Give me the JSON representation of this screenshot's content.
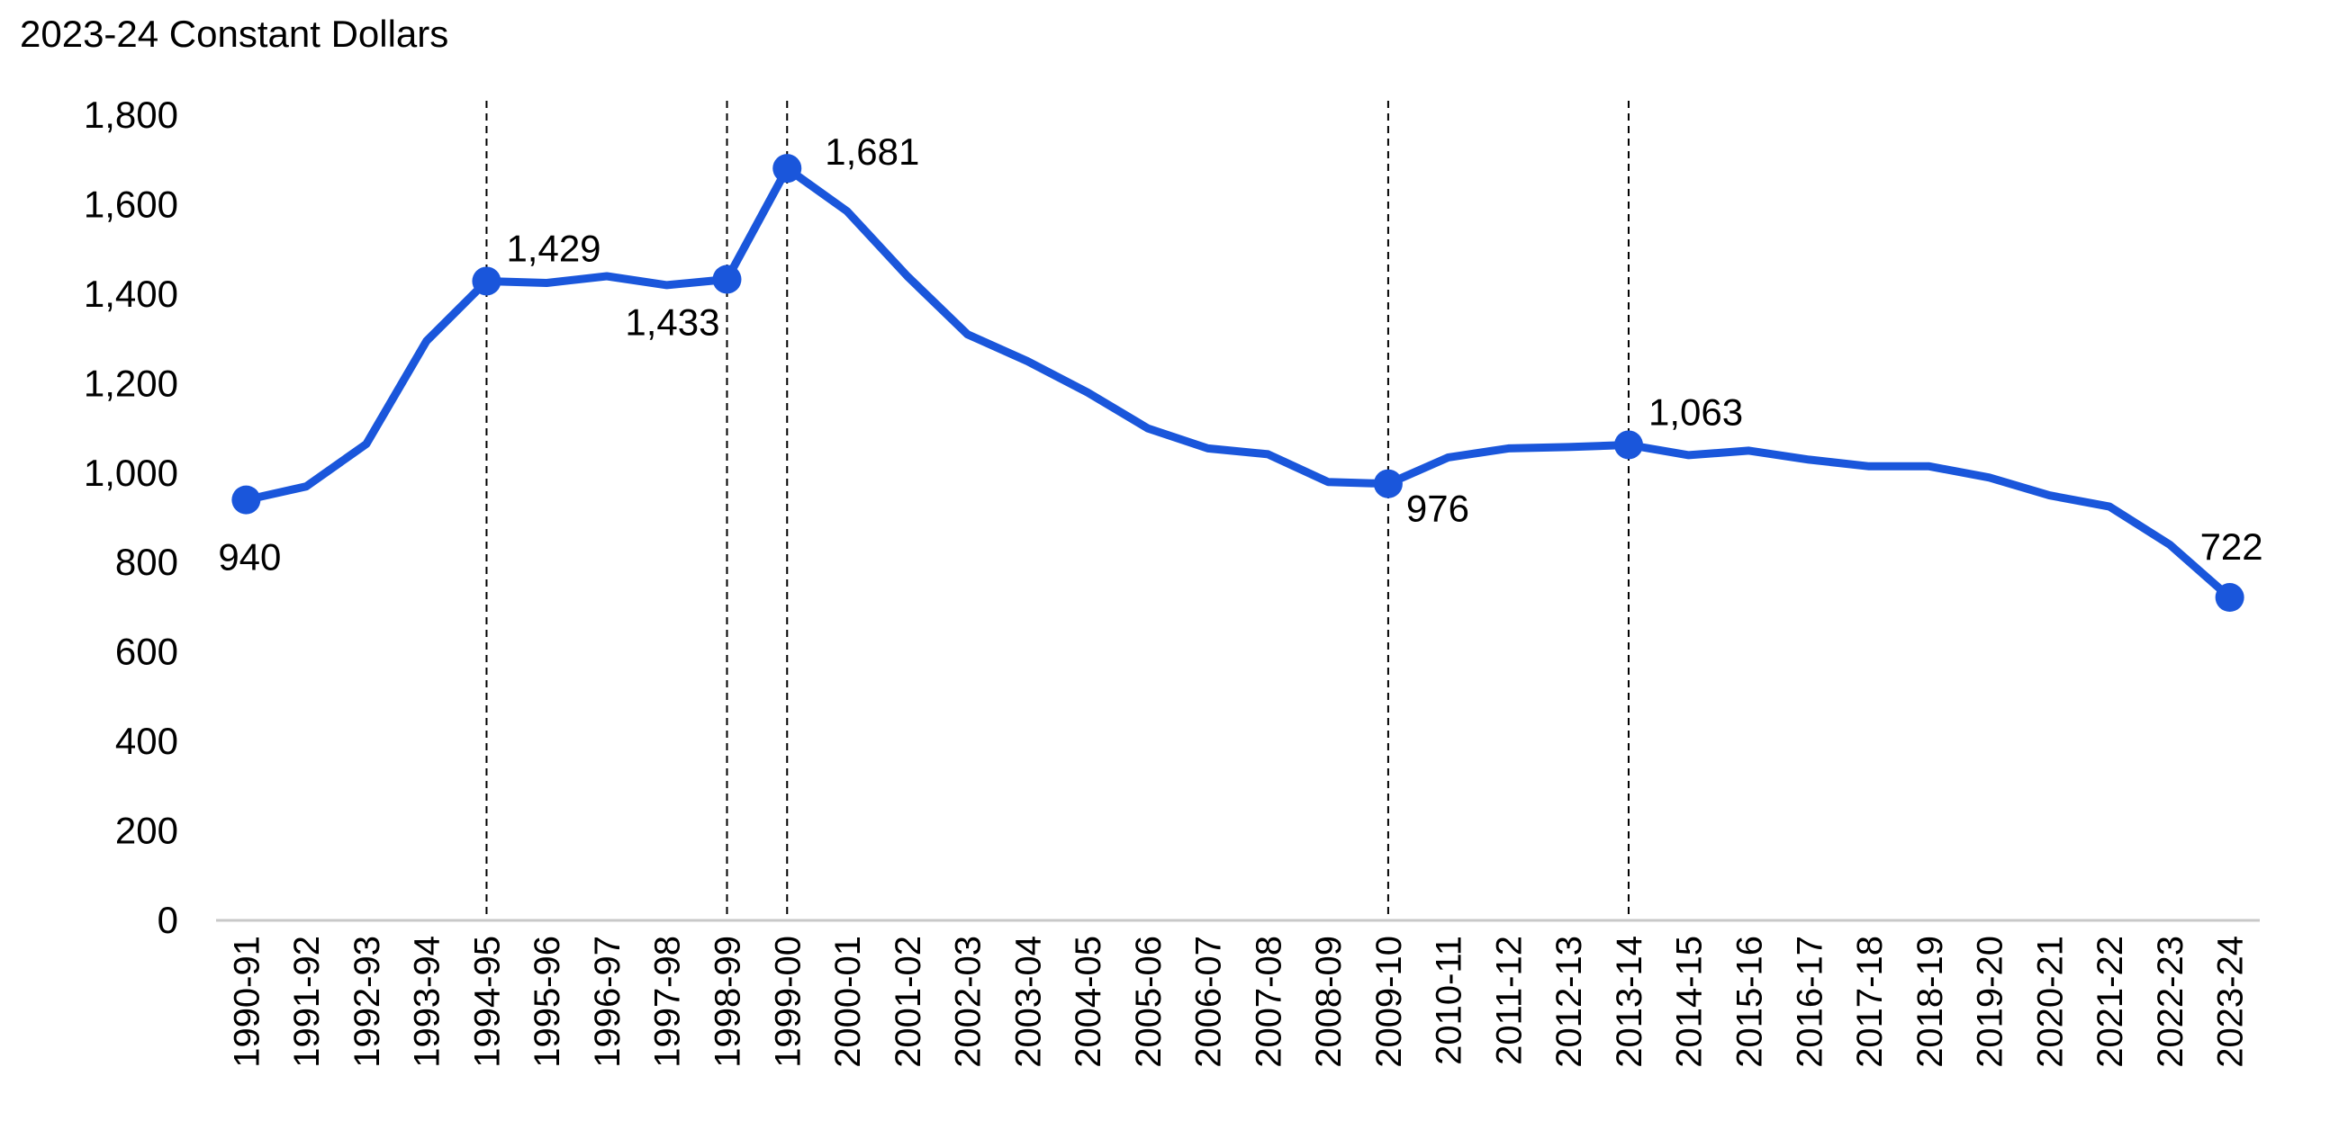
{
  "chart_data": {
    "type": "line",
    "title": "",
    "subtitle": "2023-24 Constant Dollars",
    "xlabel": "",
    "ylabel": "",
    "ylim": [
      0,
      1800
    ],
    "yticks": [
      "0",
      "200",
      "400",
      "600",
      "800",
      "1,000",
      "1,200",
      "1,400",
      "1,600",
      "1,800"
    ],
    "ytick_values": [
      0,
      200,
      400,
      600,
      800,
      1000,
      1200,
      1400,
      1600,
      1800
    ],
    "grid": false,
    "legend": "none",
    "line_color": "#1a56db",
    "categories": [
      "1990-91",
      "1991-92",
      "1992-93",
      "1993-94",
      "1994-95",
      "1995-96",
      "1996-97",
      "1997-98",
      "1998-99",
      "1999-00",
      "2000-01",
      "2001-02",
      "2002-03",
      "2003-04",
      "2004-05",
      "2005-06",
      "2006-07",
      "2007-08",
      "2008-09",
      "2009-10",
      "2010-11",
      "2011-12",
      "2012-13",
      "2013-14",
      "2014-15",
      "2015-16",
      "2016-17",
      "2017-18",
      "2018-19",
      "2019-20",
      "2020-21",
      "2021-22",
      "2022-23",
      "2023-24"
    ],
    "values": [
      940,
      970,
      1065,
      1295,
      1429,
      1425,
      1440,
      1420,
      1433,
      1681,
      1585,
      1440,
      1310,
      1250,
      1180,
      1100,
      1055,
      1042,
      980,
      976,
      1035,
      1055,
      1058,
      1063,
      1040,
      1050,
      1030,
      1015,
      1015,
      990,
      950,
      925,
      840,
      722
    ],
    "highlighted": [
      {
        "category": "1990-91",
        "label": "940",
        "vline": false,
        "label_pos": "below"
      },
      {
        "category": "1994-95",
        "label": "1,429",
        "vline": true,
        "label_pos": "above-right"
      },
      {
        "category": "1998-99",
        "label": "1,433",
        "vline": true,
        "label_pos": "below-left"
      },
      {
        "category": "1999-00",
        "label": "1,681",
        "vline": true,
        "label_pos": "right"
      },
      {
        "category": "2009-10",
        "label": "976",
        "vline": true,
        "label_pos": "below-right"
      },
      {
        "category": "2013-14",
        "label": "1,063",
        "vline": true,
        "label_pos": "above-right"
      },
      {
        "category": "2023-24",
        "label": "722",
        "vline": false,
        "label_pos": "above"
      }
    ]
  }
}
